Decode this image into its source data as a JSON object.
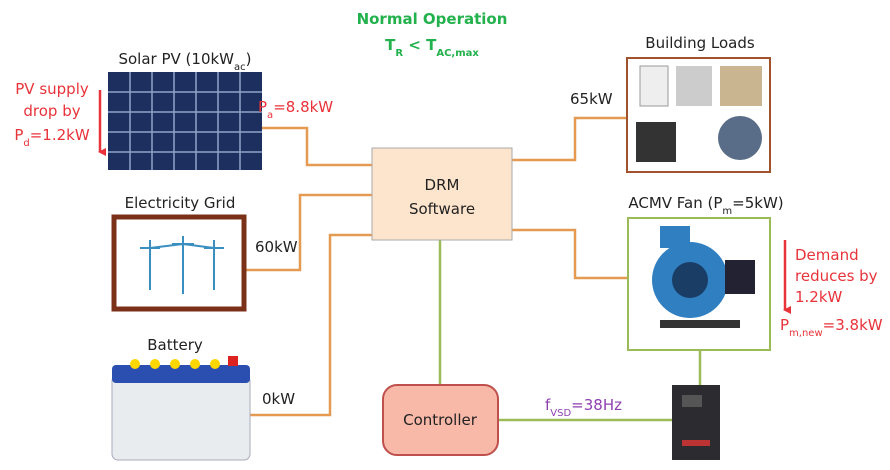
{
  "header": {
    "title": "Normal Operation",
    "condition": [
      "T",
      "R",
      " < T",
      "AC,max"
    ]
  },
  "nodes": {
    "solar": {
      "label": [
        "Solar PV (10kW",
        "ac",
        ")"
      ],
      "power": [
        "P",
        "a",
        "=8.8kW"
      ]
    },
    "pv_note": {
      "lines": [
        "PV supply",
        "drop by"
      ],
      "value": [
        "P",
        "d",
        "=1.2kW"
      ]
    },
    "grid": {
      "label": "Electricity Grid",
      "flow": "60kW"
    },
    "battery": {
      "label": "Battery",
      "flow": "0kW"
    },
    "drm": {
      "lines": [
        "DRM",
        "Software"
      ]
    },
    "building": {
      "label": "Building Loads",
      "flow": "65kW"
    },
    "fan": {
      "label": [
        "ACMV Fan (P",
        "m",
        "=5kW)"
      ]
    },
    "demand_note": {
      "lines": [
        "Demand",
        "reduces by",
        "1.2kW"
      ],
      "value": [
        "P",
        "m,new",
        "=3.8kW"
      ]
    },
    "controller": {
      "label": "Controller",
      "signal": [
        "f",
        "VSD",
        "=38Hz"
      ]
    }
  }
}
